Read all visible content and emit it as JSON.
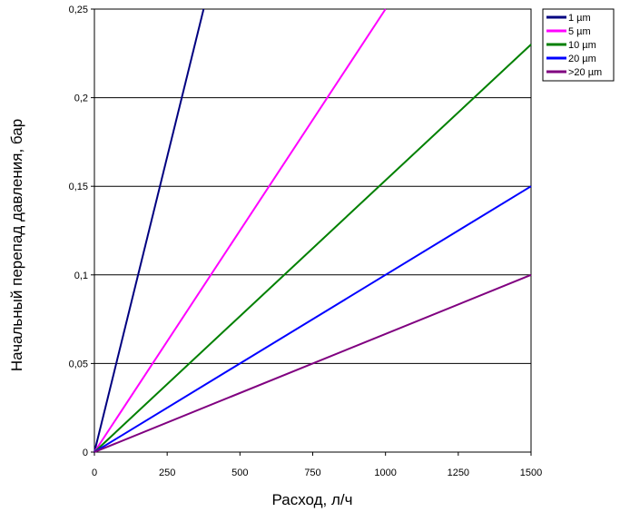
{
  "chart_data": {
    "type": "line",
    "title": "",
    "xlabel": "Расход, л/ч",
    "ylabel": "Начальный перепад давления, бар",
    "xlim": [
      0,
      1500
    ],
    "ylim": [
      0,
      0.25
    ],
    "x_ticks": [
      0,
      250,
      500,
      750,
      1000,
      1250,
      1500
    ],
    "x_tick_labels": [
      "0",
      "250",
      "500",
      "750",
      "1000",
      "1250",
      "1500"
    ],
    "y_ticks": [
      0,
      0.05,
      0.1,
      0.15,
      0.2,
      0.25
    ],
    "y_tick_labels": [
      "0",
      "0,05",
      "0,1",
      "0,15",
      "0,2",
      "0,25"
    ],
    "grid": "horizontal",
    "legend_position": "top-right",
    "series": [
      {
        "name": "1 µm",
        "color": "#000080",
        "x": [
          0,
          375
        ],
        "y": [
          0,
          0.25
        ]
      },
      {
        "name": "5 µm",
        "color": "#ff00ff",
        "x": [
          0,
          1000
        ],
        "y": [
          0,
          0.25
        ]
      },
      {
        "name": "10 µm",
        "color": "#008000",
        "x": [
          0,
          1500
        ],
        "y": [
          0,
          0.23
        ]
      },
      {
        "name": "20 µm",
        "color": "#0000ff",
        "x": [
          0,
          1500
        ],
        "y": [
          0,
          0.15
        ]
      },
      {
        "name": ">20 µm",
        "color": "#800080",
        "x": [
          0,
          1500
        ],
        "y": [
          0,
          0.1
        ]
      }
    ]
  }
}
